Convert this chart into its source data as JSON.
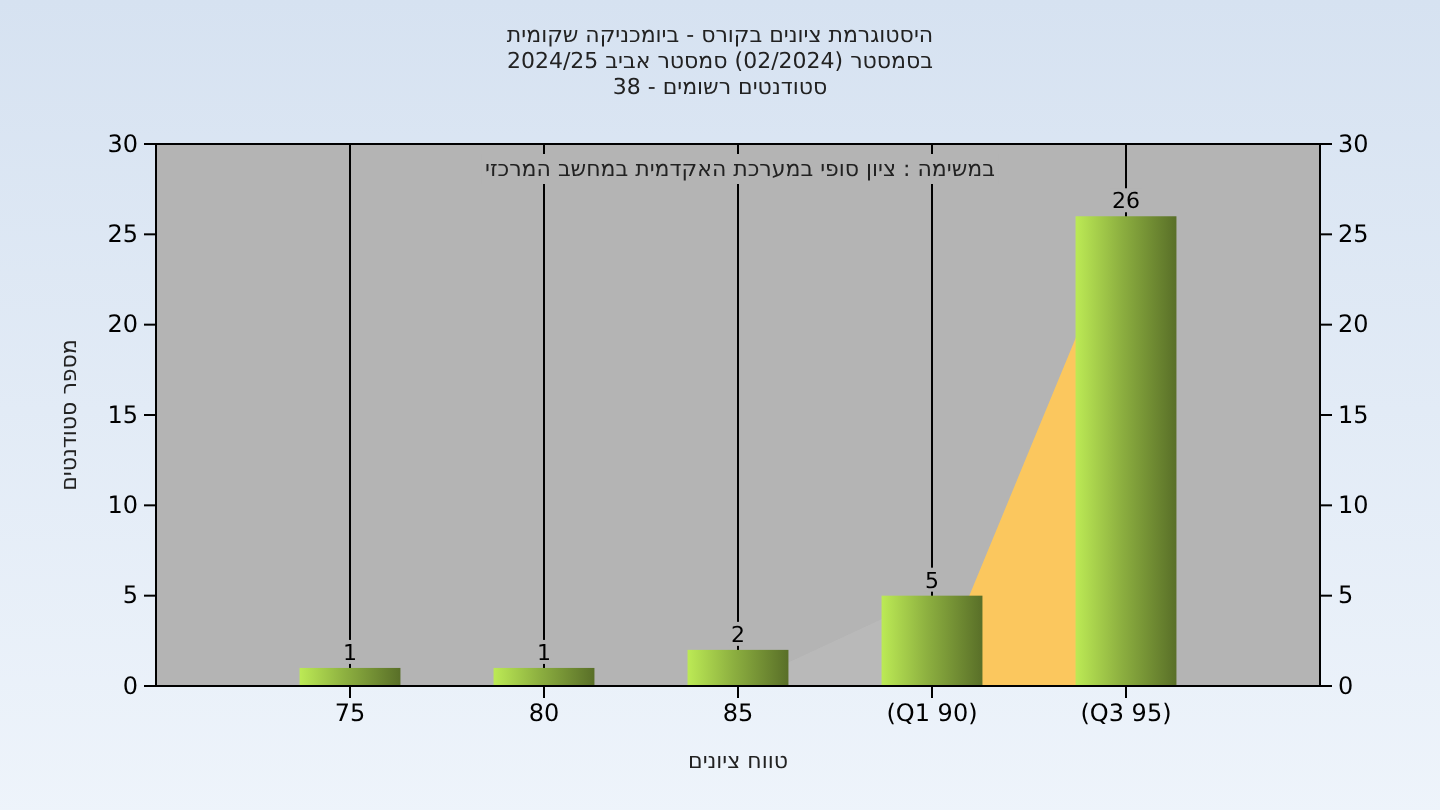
{
  "chart_data": {
    "type": "bar",
    "title": "היסטוגרמת ציונים בקורס - ביומכניקה שקומית",
    "subtitle": "בסמסטר  (02/2024)  סמסטר אביב 2024/25\nסטודנטים רשומים - 38",
    "annotations": [
      "במשימה : ציון סופי במערכת האקדמית במחשב המרכזי"
    ],
    "xlabel": "טווח ציונים",
    "ylabel": "מספר סטודנטים",
    "categories": [
      "75",
      "80",
      "85",
      "(Q1 90)",
      "(Q3 95)"
    ],
    "series": [
      {
        "type": "area",
        "color": "#b9b9b9",
        "values": [
          null,
          null,
          0,
          5,
          null
        ]
      },
      {
        "type": "area",
        "color": "#ffc85a",
        "values": [
          null,
          null,
          null,
          0,
          26
        ]
      },
      {
        "color": "#8db040",
        "values": [
          1,
          1,
          2,
          5,
          26
        ],
        "value_labels": [
          "1",
          "1",
          "2",
          "5",
          "26"
        ]
      }
    ],
    "ylim": [
      0,
      30
    ],
    "yticks": [
      0,
      5,
      10,
      15,
      20,
      25,
      30
    ],
    "y2lim": [
      0,
      30
    ],
    "y2ticks": [
      0,
      5,
      10,
      15,
      20,
      25,
      30
    ],
    "grid": "x"
  }
}
